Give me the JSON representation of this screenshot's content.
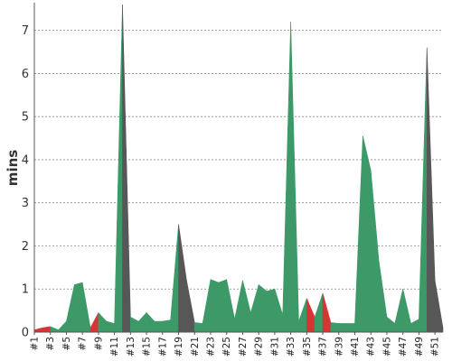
{
  "chart_data": {
    "type": "area",
    "ylabel": "mins",
    "xlabel": "",
    "title": "",
    "ylim": [
      0,
      7.6
    ],
    "yticks": [
      0,
      1,
      2,
      3,
      4,
      5,
      6,
      7
    ],
    "grid": true,
    "legend": "none",
    "colors": {
      "green": "#3d9a68",
      "red": "#d63535",
      "grey": "#575757"
    },
    "x": [
      "#1",
      "#2",
      "#3",
      "#4",
      "#5",
      "#6",
      "#7",
      "#8",
      "#9",
      "#10",
      "#11",
      "#12",
      "#13",
      "#14",
      "#15",
      "#16",
      "#17",
      "#18",
      "#19",
      "#20",
      "#21",
      "#22",
      "#23",
      "#24",
      "#25",
      "#26",
      "#27",
      "#28",
      "#29",
      "#30",
      "#31",
      "#32",
      "#33",
      "#34",
      "#35",
      "#36",
      "#37",
      "#38",
      "#39",
      "#40",
      "#41",
      "#42",
      "#43",
      "#44",
      "#45",
      "#46",
      "#47",
      "#48",
      "#49",
      "#50",
      "#51",
      "#52"
    ],
    "xtick_labels": [
      "#1",
      "#3",
      "#5",
      "#7",
      "#9",
      "#11",
      "#13",
      "#15",
      "#17",
      "#19",
      "#21",
      "#23",
      "#25",
      "#27",
      "#29",
      "#31",
      "#33",
      "#35",
      "#37",
      "#39",
      "#41",
      "#43",
      "#45",
      "#47",
      "#49",
      "#51"
    ],
    "values": [
      0.05,
      0.1,
      0.13,
      0.05,
      0.25,
      1.1,
      1.15,
      0.1,
      0.45,
      0.25,
      0.2,
      7.6,
      0.35,
      0.25,
      0.45,
      0.25,
      0.25,
      0.28,
      2.5,
      1.2,
      0.22,
      0.2,
      1.22,
      1.15,
      1.22,
      0.3,
      1.2,
      0.45,
      1.1,
      0.95,
      1.0,
      0.4,
      7.2,
      0.25,
      0.78,
      0.35,
      0.9,
      0.22,
      0.2,
      0.2,
      0.2,
      4.55,
      3.75,
      1.65,
      0.35,
      0.2,
      1.0,
      0.2,
      0.3,
      6.6,
      1.2,
      0.1
    ],
    "point_colors": [
      "red",
      "red",
      "green",
      "green",
      "green",
      "green",
      "green",
      "red",
      "green",
      "green",
      "green",
      "grey",
      "green",
      "green",
      "green",
      "green",
      "green",
      "green",
      "grey",
      "grey",
      "green",
      "green",
      "green",
      "green",
      "green",
      "green",
      "green",
      "green",
      "green",
      "green",
      "green",
      "green",
      "green",
      "green",
      "red",
      "green",
      "red",
      "green",
      "green",
      "green",
      "green",
      "green",
      "green",
      "green",
      "green",
      "green",
      "green",
      "green",
      "green",
      "grey",
      "grey",
      "green"
    ]
  }
}
